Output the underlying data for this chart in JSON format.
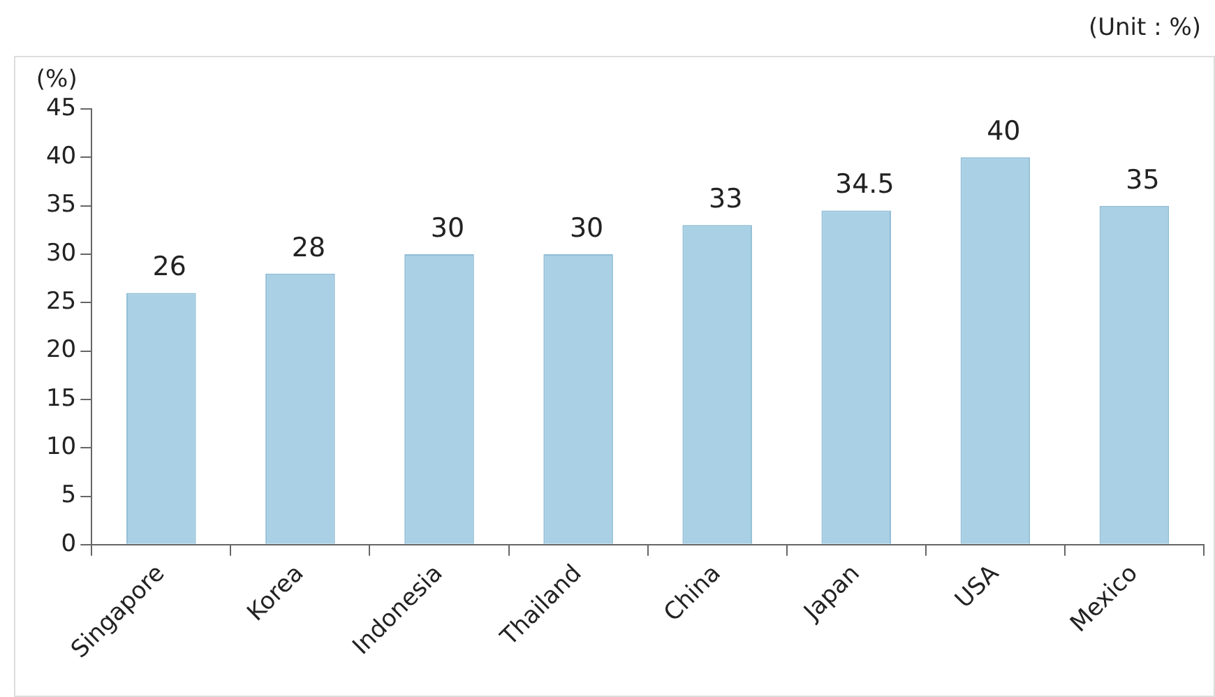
{
  "chart_data": {
    "type": "bar",
    "ylabel": "(%)",
    "annotations": [
      "(Unit : %)"
    ],
    "categories": [
      "Singapore",
      "Korea",
      "Indonesia",
      "Thailand",
      "China",
      "Japan",
      "USA",
      "Mexico"
    ],
    "values": [
      26,
      28,
      30,
      30,
      33,
      34.5,
      40,
      35
    ],
    "color": "#a9d0e4",
    "ylim": [
      0,
      45
    ],
    "yticks": [
      0,
      5,
      10,
      15,
      20,
      25,
      30,
      35,
      40,
      45
    ],
    "grid": false,
    "legend": false,
    "data_labels": true
  }
}
